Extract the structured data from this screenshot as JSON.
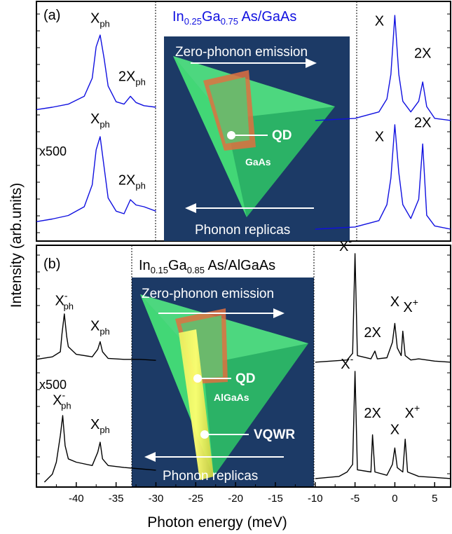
{
  "chart_data": {
    "type": "line",
    "xlabel": "Photon energy (meV)",
    "ylabel": "Intensity (arb.units)",
    "xlim": [
      -45,
      7
    ],
    "x_ticks": [
      -40,
      -35,
      -30,
      -25,
      -20,
      -15,
      -10,
      -5,
      0,
      5
    ],
    "x_tick_labels": [
      "-40",
      "-35",
      "-30",
      "-25",
      "-20",
      "-15",
      "-10",
      "-5",
      "0",
      "5"
    ],
    "grid": false,
    "panels": [
      {
        "id": "a",
        "panel_label": "(a)",
        "material_base": "In",
        "material_sub1": "0.25",
        "material_mid": "Ga",
        "material_sub2": "0.75",
        "material_tail": " As/GaAs",
        "line_color": "#1010e0",
        "inset_top_label": "Zero-phonon emission",
        "inset_bottom_label": "Phonon replicas",
        "inset_qd_label": "QD",
        "inset_matrix_label": "GaAs",
        "scale_label": "x500",
        "series": [
          {
            "region": "left-upper",
            "x": [
              -45,
              -43,
              -41,
              -39,
              -38,
              -37.5,
              -37,
              -36.5,
              -36,
              -35,
              -34,
              -33.2,
              -32.5,
              -31.5,
              -30
            ],
            "y": [
              0.05,
              0.08,
              0.12,
              0.22,
              0.45,
              0.85,
              1.0,
              0.7,
              0.35,
              0.15,
              0.12,
              0.22,
              0.14,
              0.1,
              0.08
            ]
          },
          {
            "region": "left-lower",
            "x": [
              -45,
              -43,
              -41,
              -39,
              -38,
              -37.5,
              -37,
              -36.5,
              -36,
              -35,
              -34,
              -33.2,
              -32.5,
              -31.5,
              -30
            ],
            "y": [
              0.03,
              0.06,
              0.1,
              0.2,
              0.45,
              0.85,
              1.0,
              0.65,
              0.3,
              0.15,
              0.12,
              0.28,
              0.22,
              0.2,
              0.15
            ]
          },
          {
            "region": "right-upper",
            "x": [
              -10,
              -5,
              -2,
              -1,
              -0.5,
              0,
              0.5,
              1,
              2,
              3,
              3.5,
              4,
              5,
              7
            ],
            "y": [
              0.02,
              0.04,
              0.1,
              0.22,
              0.45,
              1.0,
              0.45,
              0.2,
              0.1,
              0.2,
              0.38,
              0.15,
              0.04,
              0.02
            ]
          },
          {
            "region": "right-lower",
            "x": [
              -10,
              -5,
              -2,
              -1,
              -0.5,
              0,
              0.5,
              1,
              2,
              3,
              3.5,
              4,
              5,
              7
            ],
            "y": [
              0.02,
              0.04,
              0.1,
              0.25,
              0.5,
              1.0,
              0.55,
              0.25,
              0.12,
              0.3,
              0.82,
              0.15,
              0.05,
              0.02
            ]
          }
        ],
        "annotations": [
          {
            "x": -37,
            "level": 1.12,
            "region": "left-upper",
            "base": "X",
            "sub": "ph",
            "sup": ""
          },
          {
            "x": -33,
            "level": 0.38,
            "region": "left-upper",
            "base": "2X",
            "sub": "ph",
            "sup": ""
          },
          {
            "x": -37,
            "level": 1.12,
            "region": "left-lower",
            "base": "X",
            "sub": "ph",
            "sup": ""
          },
          {
            "x": -33,
            "level": 0.42,
            "region": "left-lower",
            "base": "2X",
            "sub": "ph",
            "sup": ""
          },
          {
            "x": 0,
            "level": 0.88,
            "region": "right-upper-l",
            "base": "X",
            "sub": "",
            "sup": ""
          },
          {
            "x": 3.5,
            "level": 0.58,
            "region": "right-upper",
            "base": "2X",
            "sub": "",
            "sup": ""
          },
          {
            "x": 0,
            "level": 0.82,
            "region": "right-lower-l",
            "base": "X",
            "sub": "",
            "sup": ""
          },
          {
            "x": 3.5,
            "level": 0.95,
            "region": "right-lower",
            "base": "2X",
            "sub": "",
            "sup": ""
          }
        ]
      },
      {
        "id": "b",
        "panel_label": "(b)",
        "material_base": "In",
        "material_sub1": "0.15",
        "material_mid": "Ga",
        "material_sub2": "0.85",
        "material_tail": " As/AlGaAs",
        "line_color": "#000000",
        "inset_top_label": "Zero-phonon emission",
        "inset_bottom_label": "Phonon replicas",
        "inset_qd_label": "QD",
        "inset_matrix_label": "AlGaAs",
        "inset_wire_label": "VQWR",
        "scale_label": "x500",
        "series": [
          {
            "region": "left-upper",
            "x": [
              -45,
              -43,
              -42,
              -41.8,
              -41.5,
              -41.2,
              -41,
              -40,
              -38,
              -37.3,
              -37,
              -36.7,
              -36,
              -34,
              -32,
              -30
            ],
            "y": [
              0.1,
              0.15,
              0.25,
              0.6,
              1.0,
              0.55,
              0.35,
              0.2,
              0.15,
              0.3,
              0.45,
              0.25,
              0.12,
              0.1,
              0.1,
              0.08
            ]
          },
          {
            "region": "left-lower",
            "x": [
              -44,
              -43,
              -42.5,
              -42,
              -41.7,
              -41.4,
              -41,
              -40,
              -38,
              -37.3,
              -37,
              -36.7,
              -36,
              -34,
              -32,
              -30
            ],
            "y": [
              0.0,
              0.12,
              0.3,
              0.7,
              1.0,
              0.55,
              0.35,
              0.3,
              0.25,
              0.45,
              0.6,
              0.35,
              0.25,
              0.22,
              0.2,
              0.18
            ]
          },
          {
            "region": "right-upper",
            "x": [
              -10,
              -6,
              -5.3,
              -5,
              -4.7,
              -3,
              -2.5,
              -2.2,
              -1,
              -0.3,
              0,
              0.3,
              0.8,
              1,
              1.3,
              2,
              3,
              5,
              7
            ],
            "y": [
              0.02,
              0.04,
              0.1,
              1.0,
              0.08,
              0.05,
              0.12,
              0.05,
              0.06,
              0.2,
              0.37,
              0.15,
              0.08,
              0.3,
              0.08,
              0.04,
              0.05,
              0.03,
              0.02
            ]
          },
          {
            "region": "right-lower",
            "x": [
              -10,
              -7,
              -6,
              -5.3,
              -5,
              -4.7,
              -3,
              -2.8,
              -2.5,
              -1,
              -0.3,
              0,
              0.3,
              1,
              1.3,
              1.6,
              3,
              5,
              7
            ],
            "y": [
              0.02,
              0.04,
              0.08,
              0.15,
              1.0,
              0.1,
              0.08,
              0.42,
              0.08,
              0.05,
              0.15,
              0.3,
              0.12,
              0.08,
              0.38,
              0.08,
              0.04,
              0.03,
              0.02
            ]
          }
        ],
        "annotations": [
          {
            "x": -41.5,
            "level": 1.12,
            "region": "left-upper",
            "base": "X",
            "sub": "ph",
            "sup": "-"
          },
          {
            "x": -37,
            "level": 0.62,
            "region": "left-upper",
            "base": "X",
            "sub": "ph",
            "sup": ""
          },
          {
            "x": -41.8,
            "level": 1.12,
            "region": "left-lower",
            "base": "X",
            "sub": "ph",
            "sup": "-"
          },
          {
            "x": -37,
            "level": 0.76,
            "region": "left-lower",
            "base": "X",
            "sub": "ph",
            "sup": ""
          },
          {
            "x": -6.2,
            "level": 1.0,
            "region": "right-upper",
            "base": "X",
            "sub": "",
            "sup": "-"
          },
          {
            "x": -2.8,
            "level": 0.22,
            "region": "right-upper",
            "base": "2X",
            "sub": "",
            "sup": ""
          },
          {
            "x": 0,
            "level": 0.5,
            "region": "right-upper",
            "base": "X",
            "sub": "",
            "sup": ""
          },
          {
            "x": 2,
            "level": 0.45,
            "region": "right-upper",
            "base": "X",
            "sub": "",
            "sup": "+"
          },
          {
            "x": -6.0,
            "level": 1.0,
            "region": "right-lower",
            "base": "X",
            "sub": "",
            "sup": "-"
          },
          {
            "x": -2.8,
            "level": 0.55,
            "region": "right-lower",
            "base": "2X",
            "sub": "",
            "sup": ""
          },
          {
            "x": 0,
            "level": 0.4,
            "region": "right-lower",
            "base": "X",
            "sub": "",
            "sup": ""
          },
          {
            "x": 2.2,
            "level": 0.55,
            "region": "right-lower",
            "base": "X",
            "sub": "",
            "sup": "+"
          }
        ]
      }
    ]
  }
}
